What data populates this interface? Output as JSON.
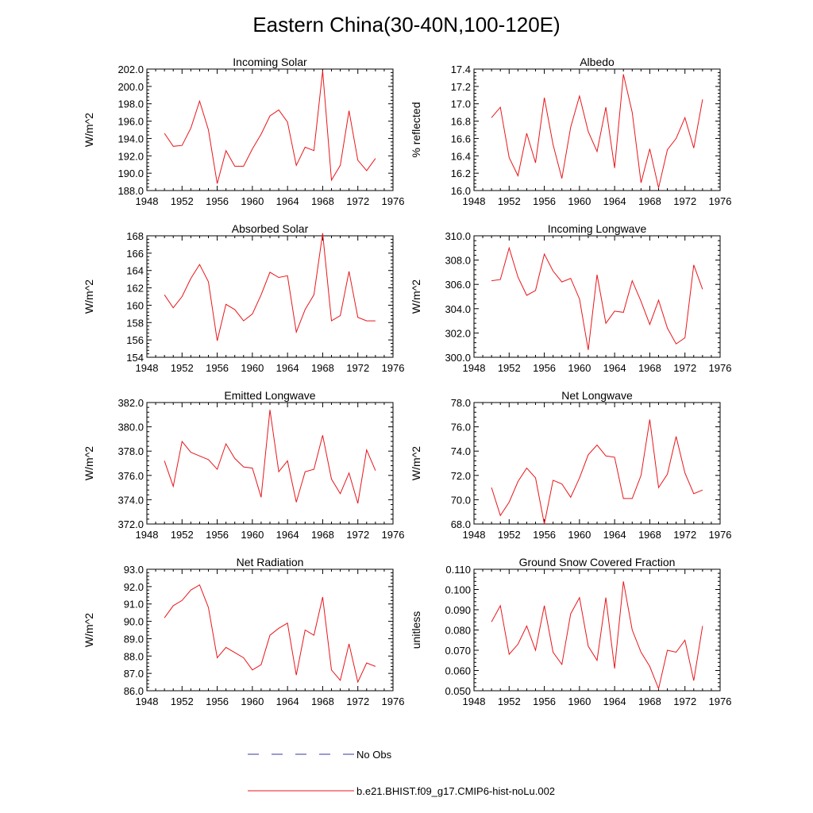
{
  "figure": {
    "title": "Eastern China(30-40N,100-120E)"
  },
  "legend": [
    {
      "label": "No Obs",
      "color": "#3a3aa0",
      "dash": true
    },
    {
      "label": "b.e21.BHIST.f09_g17.CMIP6-hist-noLu.002",
      "color": "#e8161b",
      "dash": false
    }
  ],
  "chart_data": [
    {
      "type": "line",
      "title": "Incoming Solar",
      "ylabel": "W/m^2",
      "xlim": [
        1948,
        1976
      ],
      "ylim": [
        188,
        202
      ],
      "xticks": [
        1948,
        1952,
        1956,
        1960,
        1964,
        1968,
        1972,
        1976
      ],
      "yticks": [
        "188.0",
        "190.0",
        "192.0",
        "194.0",
        "196.0",
        "198.0",
        "200.0",
        "202.0"
      ],
      "series": [
        {
          "color": "#e8161b",
          "x": [
            1950,
            1951,
            1952,
            1953,
            1954,
            1955,
            1956,
            1957,
            1958,
            1959,
            1960,
            1961,
            1962,
            1963,
            1964,
            1965,
            1966,
            1967,
            1968,
            1969,
            1970,
            1971,
            1972,
            1973,
            1974
          ],
          "values": [
            194.6,
            193.1,
            193.2,
            195.2,
            198.3,
            195.0,
            188.8,
            192.6,
            190.8,
            190.8,
            192.8,
            194.5,
            196.6,
            197.3,
            195.9,
            190.9,
            193.0,
            192.6,
            201.8,
            189.2,
            190.9,
            197.2,
            191.5,
            190.3,
            191.7
          ]
        }
      ]
    },
    {
      "type": "line",
      "title": "Albedo",
      "ylabel": "% reflected",
      "xlim": [
        1948,
        1976
      ],
      "ylim": [
        16.0,
        17.4
      ],
      "xticks": [
        1948,
        1952,
        1956,
        1960,
        1964,
        1968,
        1972,
        1976
      ],
      "yticks": [
        "16.0",
        "16.2",
        "16.4",
        "16.6",
        "16.8",
        "17.0",
        "17.2",
        "17.4"
      ],
      "series": [
        {
          "color": "#e8161b",
          "x": [
            1950,
            1951,
            1952,
            1953,
            1954,
            1955,
            1956,
            1957,
            1958,
            1959,
            1960,
            1961,
            1962,
            1963,
            1964,
            1965,
            1966,
            1967,
            1968,
            1969,
            1970,
            1971,
            1972,
            1973,
            1974
          ],
          "values": [
            16.84,
            16.96,
            16.38,
            16.17,
            16.66,
            16.32,
            17.07,
            16.53,
            16.14,
            16.73,
            17.09,
            16.68,
            16.45,
            16.96,
            16.26,
            17.34,
            16.9,
            16.09,
            16.48,
            16.03,
            16.47,
            16.6,
            16.84,
            16.49,
            17.05
          ]
        }
      ]
    },
    {
      "type": "line",
      "title": "Absorbed Solar",
      "ylabel": "W/m^2",
      "xlim": [
        1948,
        1976
      ],
      "ylim": [
        154,
        168
      ],
      "xticks": [
        1948,
        1952,
        1956,
        1960,
        1964,
        1968,
        1972,
        1976
      ],
      "yticks": [
        "154",
        "156",
        "158",
        "160",
        "162",
        "164",
        "166",
        "168"
      ],
      "series": [
        {
          "color": "#e8161b",
          "x": [
            1950,
            1951,
            1952,
            1953,
            1954,
            1955,
            1956,
            1957,
            1958,
            1959,
            1960,
            1961,
            1962,
            1963,
            1964,
            1965,
            1966,
            1967,
            1968,
            1969,
            1970,
            1971,
            1972,
            1973,
            1974
          ],
          "values": [
            161.2,
            159.7,
            161.0,
            163.1,
            164.7,
            162.7,
            155.9,
            160.1,
            159.5,
            158.2,
            159.0,
            161.2,
            163.8,
            163.2,
            163.4,
            156.9,
            159.5,
            161.2,
            168.3,
            158.2,
            158.8,
            163.9,
            158.6,
            158.2,
            158.2
          ]
        }
      ]
    },
    {
      "type": "line",
      "title": "Incoming Longwave",
      "ylabel": "W/m^2",
      "xlim": [
        1948,
        1976
      ],
      "ylim": [
        300,
        310
      ],
      "xticks": [
        1948,
        1952,
        1956,
        1960,
        1964,
        1968,
        1972,
        1976
      ],
      "yticks": [
        "300.0",
        "302.0",
        "304.0",
        "306.0",
        "308.0",
        "310.0"
      ],
      "series": [
        {
          "color": "#e8161b",
          "x": [
            1950,
            1951,
            1952,
            1953,
            1954,
            1955,
            1956,
            1957,
            1958,
            1959,
            1960,
            1961,
            1962,
            1963,
            1964,
            1965,
            1966,
            1967,
            1968,
            1969,
            1970,
            1971,
            1972,
            1973,
            1974
          ],
          "values": [
            306.3,
            306.4,
            309.0,
            306.6,
            305.1,
            305.5,
            308.5,
            307.1,
            306.2,
            306.5,
            304.8,
            300.6,
            306.8,
            302.8,
            303.8,
            303.7,
            306.3,
            304.6,
            302.7,
            304.7,
            302.4,
            301.1,
            301.6,
            307.6,
            305.6
          ]
        }
      ]
    },
    {
      "type": "line",
      "title": "Emitted Longwave",
      "ylabel": "W/m^2",
      "xlim": [
        1948,
        1976
      ],
      "ylim": [
        372,
        382
      ],
      "xticks": [
        1948,
        1952,
        1956,
        1960,
        1964,
        1968,
        1972,
        1976
      ],
      "yticks": [
        "372.0",
        "374.0",
        "376.0",
        "378.0",
        "380.0",
        "382.0"
      ],
      "series": [
        {
          "color": "#e8161b",
          "x": [
            1950,
            1951,
            1952,
            1953,
            1954,
            1955,
            1956,
            1957,
            1958,
            1959,
            1960,
            1961,
            1962,
            1963,
            1964,
            1965,
            1966,
            1967,
            1968,
            1969,
            1970,
            1971,
            1972,
            1973,
            1974
          ],
          "values": [
            377.2,
            375.1,
            378.8,
            377.9,
            377.6,
            377.3,
            376.5,
            378.6,
            377.4,
            376.7,
            376.6,
            374.2,
            381.4,
            376.3,
            377.2,
            373.8,
            376.3,
            376.5,
            379.3,
            375.7,
            374.5,
            376.2,
            373.7,
            378.1,
            376.4
          ]
        }
      ]
    },
    {
      "type": "line",
      "title": "Net Longwave",
      "ylabel": "W/m^2",
      "xlim": [
        1948,
        1976
      ],
      "ylim": [
        68,
        78
      ],
      "xticks": [
        1948,
        1952,
        1956,
        1960,
        1964,
        1968,
        1972,
        1976
      ],
      "yticks": [
        "68.0",
        "70.0",
        "72.0",
        "74.0",
        "76.0",
        "78.0"
      ],
      "series": [
        {
          "color": "#e8161b",
          "x": [
            1950,
            1951,
            1952,
            1953,
            1954,
            1955,
            1956,
            1957,
            1958,
            1959,
            1960,
            1961,
            1962,
            1963,
            1964,
            1965,
            1966,
            1967,
            1968,
            1969,
            1970,
            1971,
            1972,
            1973,
            1974
          ],
          "values": [
            71.0,
            68.7,
            69.8,
            71.5,
            72.6,
            71.8,
            68.0,
            71.6,
            71.3,
            70.2,
            71.8,
            73.7,
            74.5,
            73.6,
            73.5,
            70.1,
            70.1,
            72.0,
            76.6,
            71.0,
            72.1,
            75.2,
            72.2,
            70.5,
            70.8
          ]
        }
      ]
    },
    {
      "type": "line",
      "title": "Net Radiation",
      "ylabel": "W/m^2",
      "xlim": [
        1948,
        1976
      ],
      "ylim": [
        86,
        93
      ],
      "xticks": [
        1948,
        1952,
        1956,
        1960,
        1964,
        1968,
        1972,
        1976
      ],
      "yticks": [
        "86.0",
        "87.0",
        "88.0",
        "89.0",
        "90.0",
        "91.0",
        "92.0",
        "93.0"
      ],
      "series": [
        {
          "color": "#e8161b",
          "x": [
            1950,
            1951,
            1952,
            1953,
            1954,
            1955,
            1956,
            1957,
            1958,
            1959,
            1960,
            1961,
            1962,
            1963,
            1964,
            1965,
            1966,
            1967,
            1968,
            1969,
            1970,
            1971,
            1972,
            1973,
            1974
          ],
          "values": [
            90.2,
            90.9,
            91.2,
            91.8,
            92.1,
            90.8,
            87.9,
            88.5,
            88.2,
            87.9,
            87.2,
            87.5,
            89.2,
            89.6,
            89.9,
            86.9,
            89.5,
            89.2,
            91.4,
            87.2,
            86.6,
            88.7,
            86.5,
            87.6,
            87.4
          ]
        }
      ]
    },
    {
      "type": "line",
      "title": "Ground Snow Covered Fraction",
      "ylabel": "unitless",
      "xlim": [
        1948,
        1976
      ],
      "ylim": [
        0.05,
        0.11
      ],
      "xticks": [
        1948,
        1952,
        1956,
        1960,
        1964,
        1968,
        1972,
        1976
      ],
      "yticks": [
        "0.050",
        "0.060",
        "0.070",
        "0.080",
        "0.090",
        "0.100",
        "0.110"
      ],
      "series": [
        {
          "color": "#e8161b",
          "x": [
            1950,
            1951,
            1952,
            1953,
            1954,
            1955,
            1956,
            1957,
            1958,
            1959,
            1960,
            1961,
            1962,
            1963,
            1964,
            1965,
            1966,
            1967,
            1968,
            1969,
            1970,
            1971,
            1972,
            1973,
            1974
          ],
          "values": [
            0.084,
            0.092,
            0.068,
            0.073,
            0.082,
            0.07,
            0.092,
            0.069,
            0.063,
            0.088,
            0.096,
            0.072,
            0.065,
            0.096,
            0.061,
            0.104,
            0.08,
            0.069,
            0.062,
            0.051,
            0.07,
            0.069,
            0.075,
            0.055,
            0.082
          ]
        }
      ]
    }
  ]
}
